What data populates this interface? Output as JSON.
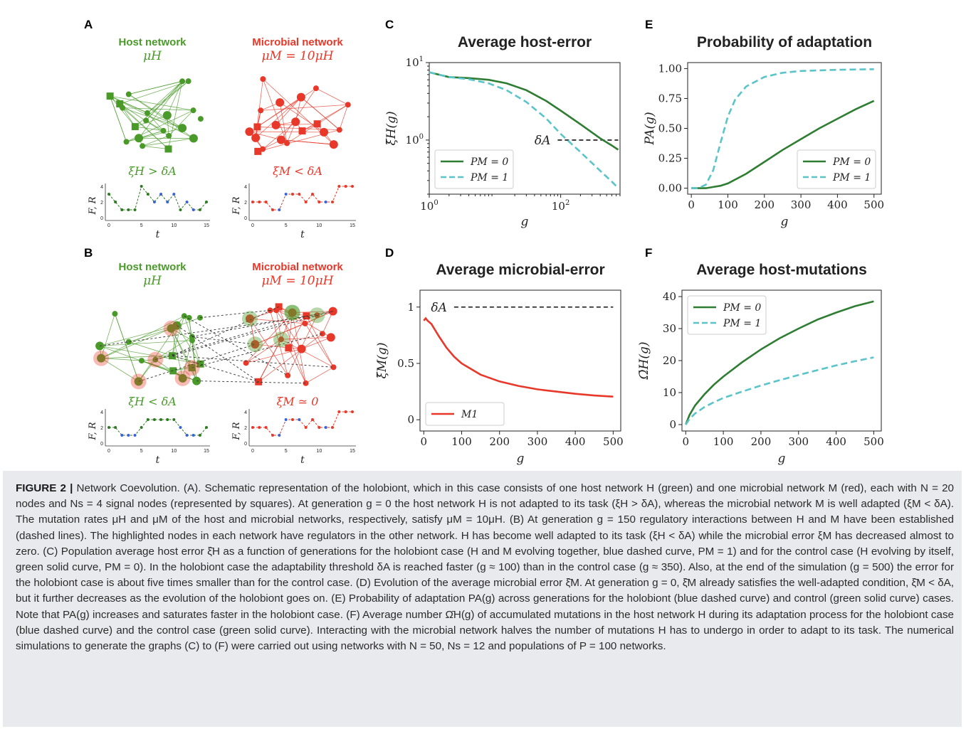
{
  "panel_letters": {
    "A": "A",
    "B": "B",
    "C": "C",
    "D": "D",
    "E": "E",
    "F": "F"
  },
  "panel_A": {
    "host_title": "Host network",
    "host_rate": "μH",
    "microbe_title": "Microbial network",
    "microbe_rate": "μM = 10μH",
    "host_condition": "ξH > δA",
    "microbe_condition": "ξM < δA",
    "ylabel": "F, R",
    "xlabel": "t",
    "yticks": [
      "0",
      "2",
      "4"
    ],
    "xticks": [
      "0",
      "5",
      "10",
      "15"
    ]
  },
  "panel_B": {
    "host_title": "Host network",
    "host_rate": "μH",
    "microbe_title": "Microbial network",
    "microbe_rate": "μM = 10μH",
    "host_condition": "ξH < δA",
    "microbe_condition": "ξM ≃ 0",
    "ylabel": "F, R",
    "xlabel": "t",
    "yticks": [
      "0",
      "2",
      "4"
    ],
    "xticks": [
      "0",
      "5",
      "10",
      "15"
    ]
  },
  "colors": {
    "host": "#4a9a2a",
    "host_dark": "#2e7a22",
    "microbe": "#e8382a",
    "blue": "#3a62d8",
    "cyan": "#5ac4c8",
    "green_curve": "#2e7d32",
    "red_curve": "#e8382a"
  },
  "chart_data": [
    {
      "id": "C",
      "type": "line",
      "title": "Average host-error",
      "xlabel": "g",
      "ylabel": "ξ̄H(g)",
      "xscale": "log",
      "yscale": "log",
      "xlim": [
        1,
        800
      ],
      "ylim": [
        0.2,
        10
      ],
      "xtick_labels": [
        "10^0",
        "10^2"
      ],
      "ytick_labels": [
        "10^0",
        "10^1"
      ],
      "series": [
        {
          "name": "PM = 0",
          "style": "solid",
          "color": "#2e7d32",
          "x": [
            1,
            2,
            4,
            8,
            15,
            30,
            60,
            100,
            200,
            400,
            600,
            750
          ],
          "y": [
            7.5,
            6.5,
            6.3,
            6.0,
            5.4,
            4.4,
            3.2,
            2.4,
            1.6,
            1.05,
            0.85,
            0.75
          ]
        },
        {
          "name": "PM = 1",
          "style": "dashed",
          "color": "#5ac4c8",
          "x": [
            1,
            2,
            4,
            8,
            15,
            30,
            60,
            100,
            200,
            400,
            600,
            750
          ],
          "y": [
            7.5,
            6.5,
            6.1,
            5.4,
            4.4,
            3.1,
            1.9,
            1.2,
            0.7,
            0.4,
            0.29,
            0.24
          ]
        }
      ],
      "threshold": {
        "label": "δA",
        "value": 1.0,
        "x_from": 90,
        "x_to": 750
      },
      "legend": "lower-left"
    },
    {
      "id": "D",
      "type": "line",
      "title": "Average microbial-error",
      "xlabel": "g",
      "ylabel": "ξ̄M(g)",
      "xlim": [
        -10,
        520
      ],
      "ylim": [
        -0.1,
        1.15
      ],
      "xticks": [
        0,
        100,
        200,
        300,
        400,
        500
      ],
      "yticks": [
        0.0,
        0.5,
        1.0
      ],
      "series": [
        {
          "name": "M1",
          "style": "solid",
          "color": "#e8382a",
          "x": [
            0,
            5,
            10,
            20,
            40,
            60,
            80,
            100,
            150,
            200,
            250,
            300,
            350,
            400,
            450,
            500
          ],
          "y": [
            0.88,
            0.9,
            0.88,
            0.85,
            0.74,
            0.64,
            0.56,
            0.5,
            0.4,
            0.34,
            0.3,
            0.27,
            0.25,
            0.23,
            0.215,
            0.205
          ]
        }
      ],
      "threshold": {
        "label": "δA",
        "value": 1.0,
        "x_from": 80,
        "x_to": 500
      },
      "legend": "lower-left"
    },
    {
      "id": "E",
      "type": "line",
      "title": "Probability of adaptation",
      "xlabel": "g",
      "ylabel": "PA(g)",
      "xlim": [
        -10,
        520
      ],
      "ylim": [
        -0.05,
        1.05
      ],
      "xticks": [
        0,
        100,
        200,
        300,
        400,
        500
      ],
      "yticks": [
        0.0,
        0.25,
        0.5,
        0.75,
        1.0
      ],
      "ytick_labels": [
        "0.00",
        "0.25",
        "0.50",
        "0.75",
        "1.00"
      ],
      "series": [
        {
          "name": "PM = 0",
          "style": "solid",
          "color": "#2e7d32",
          "x": [
            0,
            20,
            40,
            60,
            80,
            100,
            150,
            200,
            250,
            300,
            350,
            400,
            450,
            500
          ],
          "y": [
            0,
            0,
            0,
            0.01,
            0.02,
            0.04,
            0.12,
            0.22,
            0.32,
            0.41,
            0.5,
            0.58,
            0.66,
            0.73
          ]
        },
        {
          "name": "PM = 1",
          "style": "dashed",
          "color": "#5ac4c8",
          "x": [
            0,
            20,
            40,
            60,
            80,
            100,
            120,
            150,
            200,
            250,
            300,
            400,
            500
          ],
          "y": [
            0,
            0,
            0.03,
            0.15,
            0.38,
            0.6,
            0.74,
            0.85,
            0.93,
            0.965,
            0.98,
            0.99,
            0.995
          ]
        }
      ],
      "legend": "lower-right"
    },
    {
      "id": "F",
      "type": "line",
      "title": "Average host-mutations",
      "xlabel": "g",
      "ylabel": "Ω̄H(g)",
      "xlim": [
        -10,
        520
      ],
      "ylim": [
        -2,
        42
      ],
      "xticks": [
        0,
        100,
        200,
        300,
        400,
        500
      ],
      "yticks": [
        0,
        10,
        20,
        30,
        40
      ],
      "series": [
        {
          "name": "PM = 0",
          "style": "solid",
          "color": "#2e7d32",
          "x": [
            0,
            10,
            25,
            50,
            75,
            100,
            150,
            200,
            250,
            300,
            350,
            400,
            450,
            500
          ],
          "y": [
            0,
            3,
            6,
            9.5,
            12.5,
            15,
            19.5,
            23.5,
            27,
            30,
            32.8,
            35,
            37,
            38.5
          ]
        },
        {
          "name": "PM = 1",
          "style": "dashed",
          "color": "#5ac4c8",
          "x": [
            0,
            10,
            25,
            50,
            75,
            100,
            150,
            200,
            250,
            300,
            350,
            400,
            450,
            500
          ],
          "y": [
            0,
            1.8,
            3.5,
            5.5,
            7,
            8.3,
            10.3,
            12.2,
            13.9,
            15.5,
            17,
            18.5,
            19.8,
            21
          ]
        }
      ],
      "legend": "upper-left"
    }
  ],
  "caption": {
    "label": "FIGURE 2 |",
    "text": "Network Coevolution. (A). Schematic representation of the holobiont, which in this case consists of one host network H (green) and one microbial network M (red), each with N = 20 nodes and Ns = 4 signal nodes (represented by squares). At generation g = 0 the host network H is not adapted to its task (ξH > δA), whereas the microbial network M is well adapted (ξM < δA). The mutation rates μH and μM of the host and microbial networks, respectively, satisfy μM = 10μH. (B) At generation g = 150 regulatory interactions between H and M have been established (dashed lines). The highlighted nodes in each network have regulators in the other network. H has become well adapted to its task (ξH < δA) while the microbial error ξM has decreased almost to zero. (C) Population average host error ξ̄H as a function of generations for the holobiont case (H and M evolving together, blue dashed curve, PM = 1) and for the control case (H evolving by itself, green solid curve, PM = 0). In the holobiont case the adaptability threshold δA is reached faster (g ≈ 100) than in the control case (g ≈ 350). Also, at the end of the simulation (g = 500) the error for the holobiont case is about five times smaller than for the control case. (D) Evolution of the average microbial error ξ̄M. At generation g = 0, ξ̄M already satisfies the well-adapted condition, ξ̄M < δA, but it further decreases as the evolution of the holobiont goes on. (E) Probability of adaptation PA(g) across generations for the holobiont (blue dashed curve) and control (green solid curve) cases. Note that PA(g) increases and saturates faster in the holobiont case. (F) Average number Ω̄H(g) of accumulated mutations in the host network H during its adaptation process for the holobiont case (blue dashed curve) and the control case (green solid curve). Interacting with the microbial network halves the number of mutations H has to undergo in order to adapt to its task. The numerical simulations to generate the graphs (C) to (F) were carried out using networks with N = 50, Ns = 12 and populations of P = 100 networks."
  }
}
